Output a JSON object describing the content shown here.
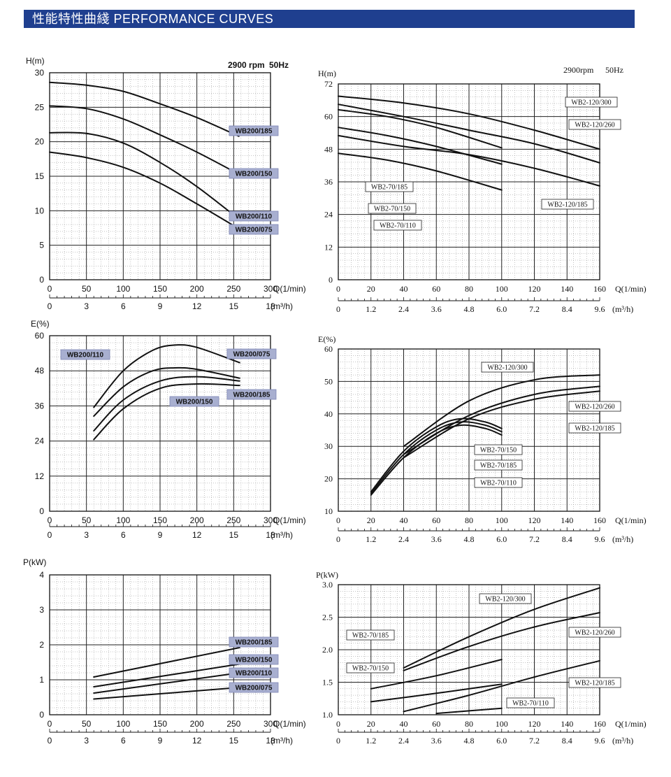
{
  "header": {
    "title": "性能特性曲綫 PERFORMANCE CURVES"
  },
  "chart_data": [
    {
      "id": "wb200-head",
      "type": "line",
      "ylabel": "H(m)",
      "xlabel": "Q(1/min)",
      "x2label": "(m³/h)",
      "note_rpm": "2900 rpm",
      "note_hz": "50Hz",
      "xlim": [
        0,
        300
      ],
      "ylim": [
        0,
        30
      ],
      "xticks": [
        "0",
        "50",
        "100",
        "150",
        "200",
        "250",
        "300"
      ],
      "yticks": [
        "0",
        "5",
        "10",
        "15",
        "20",
        "25",
        "30"
      ],
      "x2ticks": [
        "0",
        "3",
        "6",
        "9",
        "12",
        "15",
        "18"
      ],
      "series": [
        {
          "name": "WB200/185",
          "x": [
            0,
            50,
            100,
            150,
            200,
            257
          ],
          "y": [
            28.6,
            28.2,
            27.3,
            25.5,
            23.5,
            20.8
          ]
        },
        {
          "name": "WB200/150",
          "x": [
            0,
            50,
            100,
            150,
            200,
            257
          ],
          "y": [
            25.2,
            24.8,
            23.3,
            21.0,
            18.5,
            15.3
          ]
        },
        {
          "name": "WB200/110",
          "x": [
            0,
            50,
            100,
            150,
            200,
            257
          ],
          "y": [
            21.3,
            21.2,
            19.8,
            17.0,
            13.5,
            8.8
          ]
        },
        {
          "name": "WB200/075",
          "x": [
            0,
            50,
            100,
            150,
            200,
            257
          ],
          "y": [
            18.5,
            17.7,
            16.3,
            14.0,
            11.0,
            7.4
          ]
        }
      ]
    },
    {
      "id": "wb2-head",
      "type": "line",
      "ylabel": "H(m)",
      "xlabel": "Q(1/min)",
      "x2label": "(m³/h)",
      "note_rpm": "2900rpm",
      "note_hz": "50Hz",
      "xlim": [
        0,
        160
      ],
      "ylim": [
        0,
        72
      ],
      "xticks": [
        "0",
        "20",
        "40",
        "60",
        "80",
        "100",
        "120",
        "140",
        "160"
      ],
      "yticks": [
        "0",
        "12",
        "24",
        "36",
        "48",
        "60",
        "72"
      ],
      "x2ticks": [
        "0",
        "1.2",
        "2.4",
        "3.6",
        "4.8",
        "6.0",
        "7.2",
        "8.4",
        "9.6"
      ],
      "series": [
        {
          "name": "WB2-120/300",
          "x": [
            0,
            40,
            80,
            120,
            160
          ],
          "y": [
            67.5,
            65.0,
            61.0,
            55.0,
            48.0
          ]
        },
        {
          "name": "WB2-120/260",
          "x": [
            0,
            40,
            80,
            120,
            160
          ],
          "y": [
            64.5,
            60.0,
            55.0,
            50.0,
            43.0
          ]
        },
        {
          "name": "WB2-120/185",
          "x": [
            0,
            40,
            80,
            120,
            160
          ],
          "y": [
            53.0,
            49.0,
            46.0,
            41.0,
            34.5
          ]
        },
        {
          "name": "WB2-70/185",
          "x": [
            0,
            30,
            60,
            100
          ],
          "y": [
            62.5,
            60.0,
            56.0,
            48.5
          ]
        },
        {
          "name": "WB2-70/150",
          "x": [
            0,
            30,
            60,
            100
          ],
          "y": [
            56.0,
            53.0,
            49.0,
            42.5
          ]
        },
        {
          "name": "WB2-70/110",
          "x": [
            0,
            30,
            60,
            100
          ],
          "y": [
            46.5,
            44.0,
            40.0,
            33.0
          ]
        }
      ]
    },
    {
      "id": "wb200-eff",
      "type": "line",
      "ylabel": "E(%)",
      "xlabel": "Q(1/min)",
      "x2label": "(m³/h)",
      "xlim": [
        0,
        300
      ],
      "ylim": [
        0,
        60
      ],
      "xticks": [
        "0",
        "50",
        "100",
        "150",
        "200",
        "250",
        "300"
      ],
      "yticks": [
        "0",
        "12",
        "24",
        "36",
        "48",
        "60"
      ],
      "x2ticks": [
        "0",
        "3",
        "6",
        "9",
        "12",
        "15",
        "18"
      ],
      "series": [
        {
          "name": "WB200/075",
          "x": [
            60,
            100,
            140,
            170,
            200,
            258
          ],
          "y": [
            35.5,
            48.0,
            55.0,
            56.8,
            56.0,
            50.8
          ]
        },
        {
          "name": "WB200/110",
          "x": [
            60,
            100,
            140,
            170,
            200,
            258
          ],
          "y": [
            32.5,
            42.5,
            48.0,
            49.0,
            48.5,
            45.5
          ]
        },
        {
          "name": "WB200/185",
          "x": [
            60,
            100,
            150,
            200,
            258
          ],
          "y": [
            27.5,
            38.0,
            44.5,
            46.0,
            44.5
          ]
        },
        {
          "name": "WB200/150",
          "x": [
            60,
            100,
            150,
            200,
            258
          ],
          "y": [
            24.5,
            35.0,
            42.0,
            43.5,
            43.0
          ]
        }
      ]
    },
    {
      "id": "wb2-eff",
      "type": "line",
      "ylabel": "E(%)",
      "xlabel": "Q(1/min)",
      "x2label": "(m³/h)",
      "xlim": [
        0,
        160
      ],
      "ylim": [
        10,
        60
      ],
      "xticks": [
        "0",
        "20",
        "40",
        "60",
        "80",
        "100",
        "120",
        "140",
        "160"
      ],
      "yticks": [
        "10",
        "20",
        "30",
        "40",
        "50",
        "60"
      ],
      "x2ticks": [
        "0",
        "1.2",
        "2.4",
        "3.6",
        "4.8",
        "6.0",
        "7.2",
        "8.4",
        "9.6"
      ],
      "series": [
        {
          "name": "WB2-120/300",
          "x": [
            40,
            80,
            120,
            160
          ],
          "y": [
            30.0,
            44.0,
            50.5,
            52.0
          ]
        },
        {
          "name": "WB2-120/260",
          "x": [
            40,
            80,
            120,
            160
          ],
          "y": [
            27.5,
            39.5,
            46.0,
            48.5
          ]
        },
        {
          "name": "WB2-120/185",
          "x": [
            40,
            80,
            120,
            160
          ],
          "y": [
            26.5,
            38.5,
            44.5,
            47.0
          ]
        },
        {
          "name": "WB2-70/150",
          "x": [
            20,
            40,
            60,
            75,
            90,
            100
          ],
          "y": [
            16.0,
            28.5,
            36.0,
            38.5,
            37.5,
            35.5
          ]
        },
        {
          "name": "WB2-70/185",
          "x": [
            20,
            40,
            60,
            75,
            90,
            100
          ],
          "y": [
            15.5,
            27.5,
            35.0,
            37.5,
            36.5,
            34.5
          ]
        },
        {
          "name": "WB2-70/110",
          "x": [
            20,
            40,
            60,
            75,
            90,
            100
          ],
          "y": [
            15.0,
            26.5,
            34.0,
            36.5,
            35.5,
            33.5
          ]
        }
      ]
    },
    {
      "id": "wb200-power",
      "type": "line",
      "ylabel": "P(kW)",
      "xlabel": "Q(1/min)",
      "x2label": "(m³/h)",
      "xlim": [
        0,
        300
      ],
      "ylim": [
        0,
        4
      ],
      "xticks": [
        "0",
        "50",
        "100",
        "150",
        "200",
        "250",
        "300"
      ],
      "yticks": [
        "0",
        "1",
        "2",
        "3",
        "4"
      ],
      "x2ticks": [
        "0",
        "3",
        "6",
        "9",
        "12",
        "15",
        "18"
      ],
      "series": [
        {
          "name": "WB200/185",
          "x": [
            60,
            258
          ],
          "y": [
            1.08,
            1.92
          ]
        },
        {
          "name": "WB200/150",
          "x": [
            60,
            258
          ],
          "y": [
            0.8,
            1.45
          ]
        },
        {
          "name": "WB200/110",
          "x": [
            60,
            258
          ],
          "y": [
            0.62,
            1.2
          ]
        },
        {
          "name": "WB200/075",
          "x": [
            60,
            258
          ],
          "y": [
            0.45,
            0.78
          ]
        }
      ]
    },
    {
      "id": "wb2-power",
      "type": "line",
      "ylabel": "P(kW)",
      "xlabel": "Q(1/min)",
      "x2label": "(m³/h)",
      "xlim": [
        0,
        160
      ],
      "ylim": [
        1.0,
        3.0
      ],
      "xticks": [
        "0",
        "20",
        "40",
        "60",
        "80",
        "100",
        "120",
        "140",
        "160"
      ],
      "yticks": [
        "1.0",
        "1.5",
        "2.0",
        "2.5",
        "3.0"
      ],
      "x2ticks": [
        "0",
        "1.2",
        "2.4",
        "3.6",
        "4.8",
        "6.0",
        "7.2",
        "8.4",
        "9.6"
      ],
      "series": [
        {
          "name": "WB2-120/300",
          "x": [
            40,
            80,
            120,
            160
          ],
          "y": [
            1.72,
            2.2,
            2.62,
            2.95
          ]
        },
        {
          "name": "WB2-120/260",
          "x": [
            40,
            80,
            120,
            160
          ],
          "y": [
            1.68,
            2.05,
            2.35,
            2.57
          ]
        },
        {
          "name": "WB2-120/185",
          "x": [
            40,
            80,
            120,
            160
          ],
          "y": [
            1.05,
            1.3,
            1.58,
            1.83
          ]
        },
        {
          "name": "WB2-70/185",
          "x": [
            20,
            60,
            100
          ],
          "y": [
            1.4,
            1.6,
            1.85
          ]
        },
        {
          "name": "WB2-70/150",
          "x": [
            20,
            60,
            100
          ],
          "y": [
            1.2,
            1.33,
            1.47
          ]
        },
        {
          "name": "WB2-70/110",
          "x": [
            60,
            100
          ],
          "y": [
            1.02,
            1.1
          ]
        }
      ]
    }
  ]
}
